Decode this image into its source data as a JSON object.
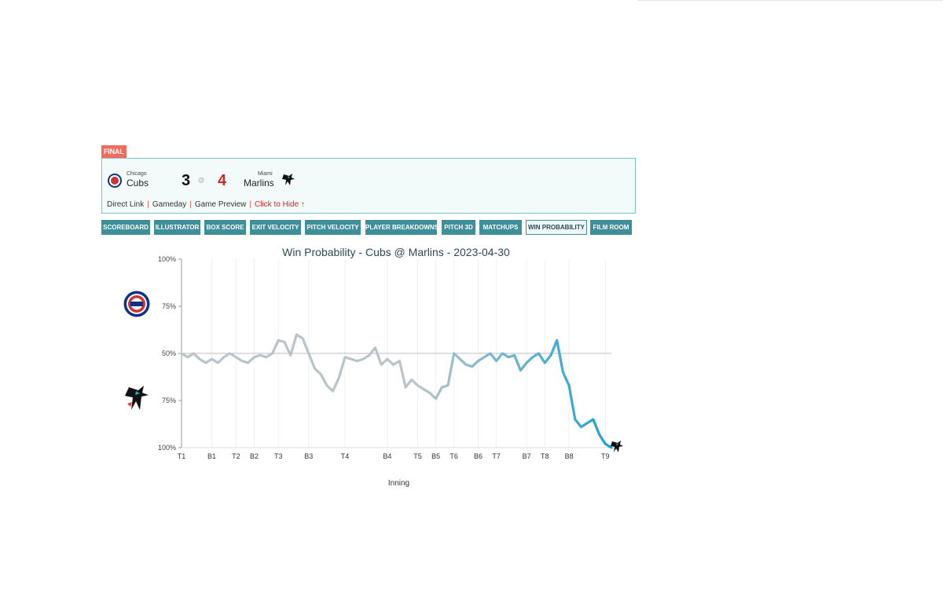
{
  "final_label": "FINAL",
  "away": {
    "city": "Chicago",
    "name": "Cubs",
    "score": "3",
    "logo": "cubs-logo-icon"
  },
  "home": {
    "city": "Miami",
    "name": "Marlins",
    "score": "4",
    "logo": "marlins-logo-icon"
  },
  "at_symbol": "@",
  "links": {
    "direct": "Direct Link",
    "gameday": "Gameday",
    "preview": "Game Preview",
    "hide": "Click to Hide ↑"
  },
  "tabs": [
    {
      "label": "SCOREBOARD"
    },
    {
      "label": "ILLUSTRATOR"
    },
    {
      "label": "BOX SCORE"
    },
    {
      "label": "EXIT VELOCITY"
    },
    {
      "label": "PITCH VELOCITY"
    },
    {
      "label": "PLAYER BREAKDOWNS"
    },
    {
      "label": "PITCH 3D"
    },
    {
      "label": "MATCHUPS"
    },
    {
      "label": "WIN PROBABILITY",
      "active": true
    },
    {
      "label": "FILM ROOM"
    }
  ],
  "colors": {
    "away_red": "#cc3433",
    "home_red": "#d22b1f",
    "line_start": "#b9c4c9",
    "line_end": "#1aa3d6",
    "tab_bg": "#3f8f9a"
  },
  "chart_data": {
    "type": "line",
    "title": "Win Probability - Cubs @ Marlins - 2023-04-30",
    "xlabel": "Inning",
    "ylabel": "",
    "y_tick_labels": [
      "100%",
      "75%",
      "50%",
      "75%",
      "100%"
    ],
    "y_meaning": "Cubs win probability (%) — top half of chart favors Cubs, bottom half favors Marlins",
    "ylim": [
      0,
      100
    ],
    "grid": true,
    "x_tick_labels": [
      "T1",
      "B1",
      "T2",
      "B2",
      "T3",
      "B3",
      "T4",
      "B4",
      "T5",
      "B5",
      "T6",
      "B6",
      "T7",
      "B7",
      "T8",
      "B8",
      "T9"
    ],
    "x_tick_positions": [
      0,
      5,
      9,
      12,
      16,
      21,
      27,
      34,
      39,
      42,
      45,
      49,
      52,
      57,
      60,
      64,
      70
    ],
    "series": [
      {
        "values": [
          50,
          48,
          50,
          47,
          45,
          47,
          45,
          48,
          50,
          48,
          46,
          45,
          48,
          49,
          48,
          50,
          57,
          56,
          49,
          60,
          58,
          50,
          42,
          39,
          33,
          30,
          37,
          48,
          47,
          46,
          47,
          49,
          53,
          44,
          47,
          44,
          46,
          32,
          36,
          33,
          31,
          29,
          26,
          32,
          33,
          50,
          47,
          44,
          43,
          46,
          48,
          50,
          46,
          50,
          48,
          49,
          41,
          45,
          48,
          50,
          45,
          49,
          57,
          40,
          33,
          15,
          11,
          13,
          15,
          7,
          2,
          0
        ]
      }
    ]
  }
}
